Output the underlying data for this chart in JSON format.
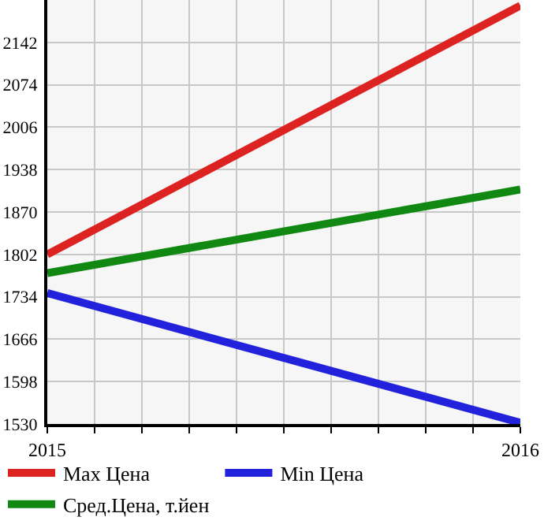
{
  "chart_data": {
    "type": "line",
    "x": [
      2015,
      2016
    ],
    "series": [
      {
        "name": "Max Цена",
        "color": "#dd2222",
        "values": [
          1802,
          2201
        ]
      },
      {
        "name": "Min Цена",
        "color": "#2222dd",
        "values": [
          1740,
          1532
        ]
      },
      {
        "name": "Сред.Цена, т.йен",
        "color": "#118811",
        "values": [
          1772,
          1906
        ]
      }
    ],
    "xlim": [
      2015,
      2016
    ],
    "xticks": [
      2015,
      {
        "value": 2015.1,
        "label": null
      },
      {
        "value": 2015.2,
        "label": null
      },
      {
        "value": 2015.3,
        "label": null
      },
      {
        "value": 2015.4,
        "label": null
      },
      {
        "value": 2015.5,
        "label": null
      },
      {
        "value": 2015.6,
        "label": null
      },
      {
        "value": 2015.7,
        "label": null
      },
      {
        "value": 2015.8,
        "label": null
      },
      {
        "value": 2015.9,
        "label": null
      },
      2016
    ],
    "ylim": [
      1530,
      2210
    ],
    "yticks": [
      1530,
      1598,
      1666,
      1734,
      1802,
      1870,
      1938,
      2006,
      2074,
      2142
    ],
    "grid": true,
    "legend": "bottom",
    "marker": "none",
    "line_style": "solid"
  }
}
